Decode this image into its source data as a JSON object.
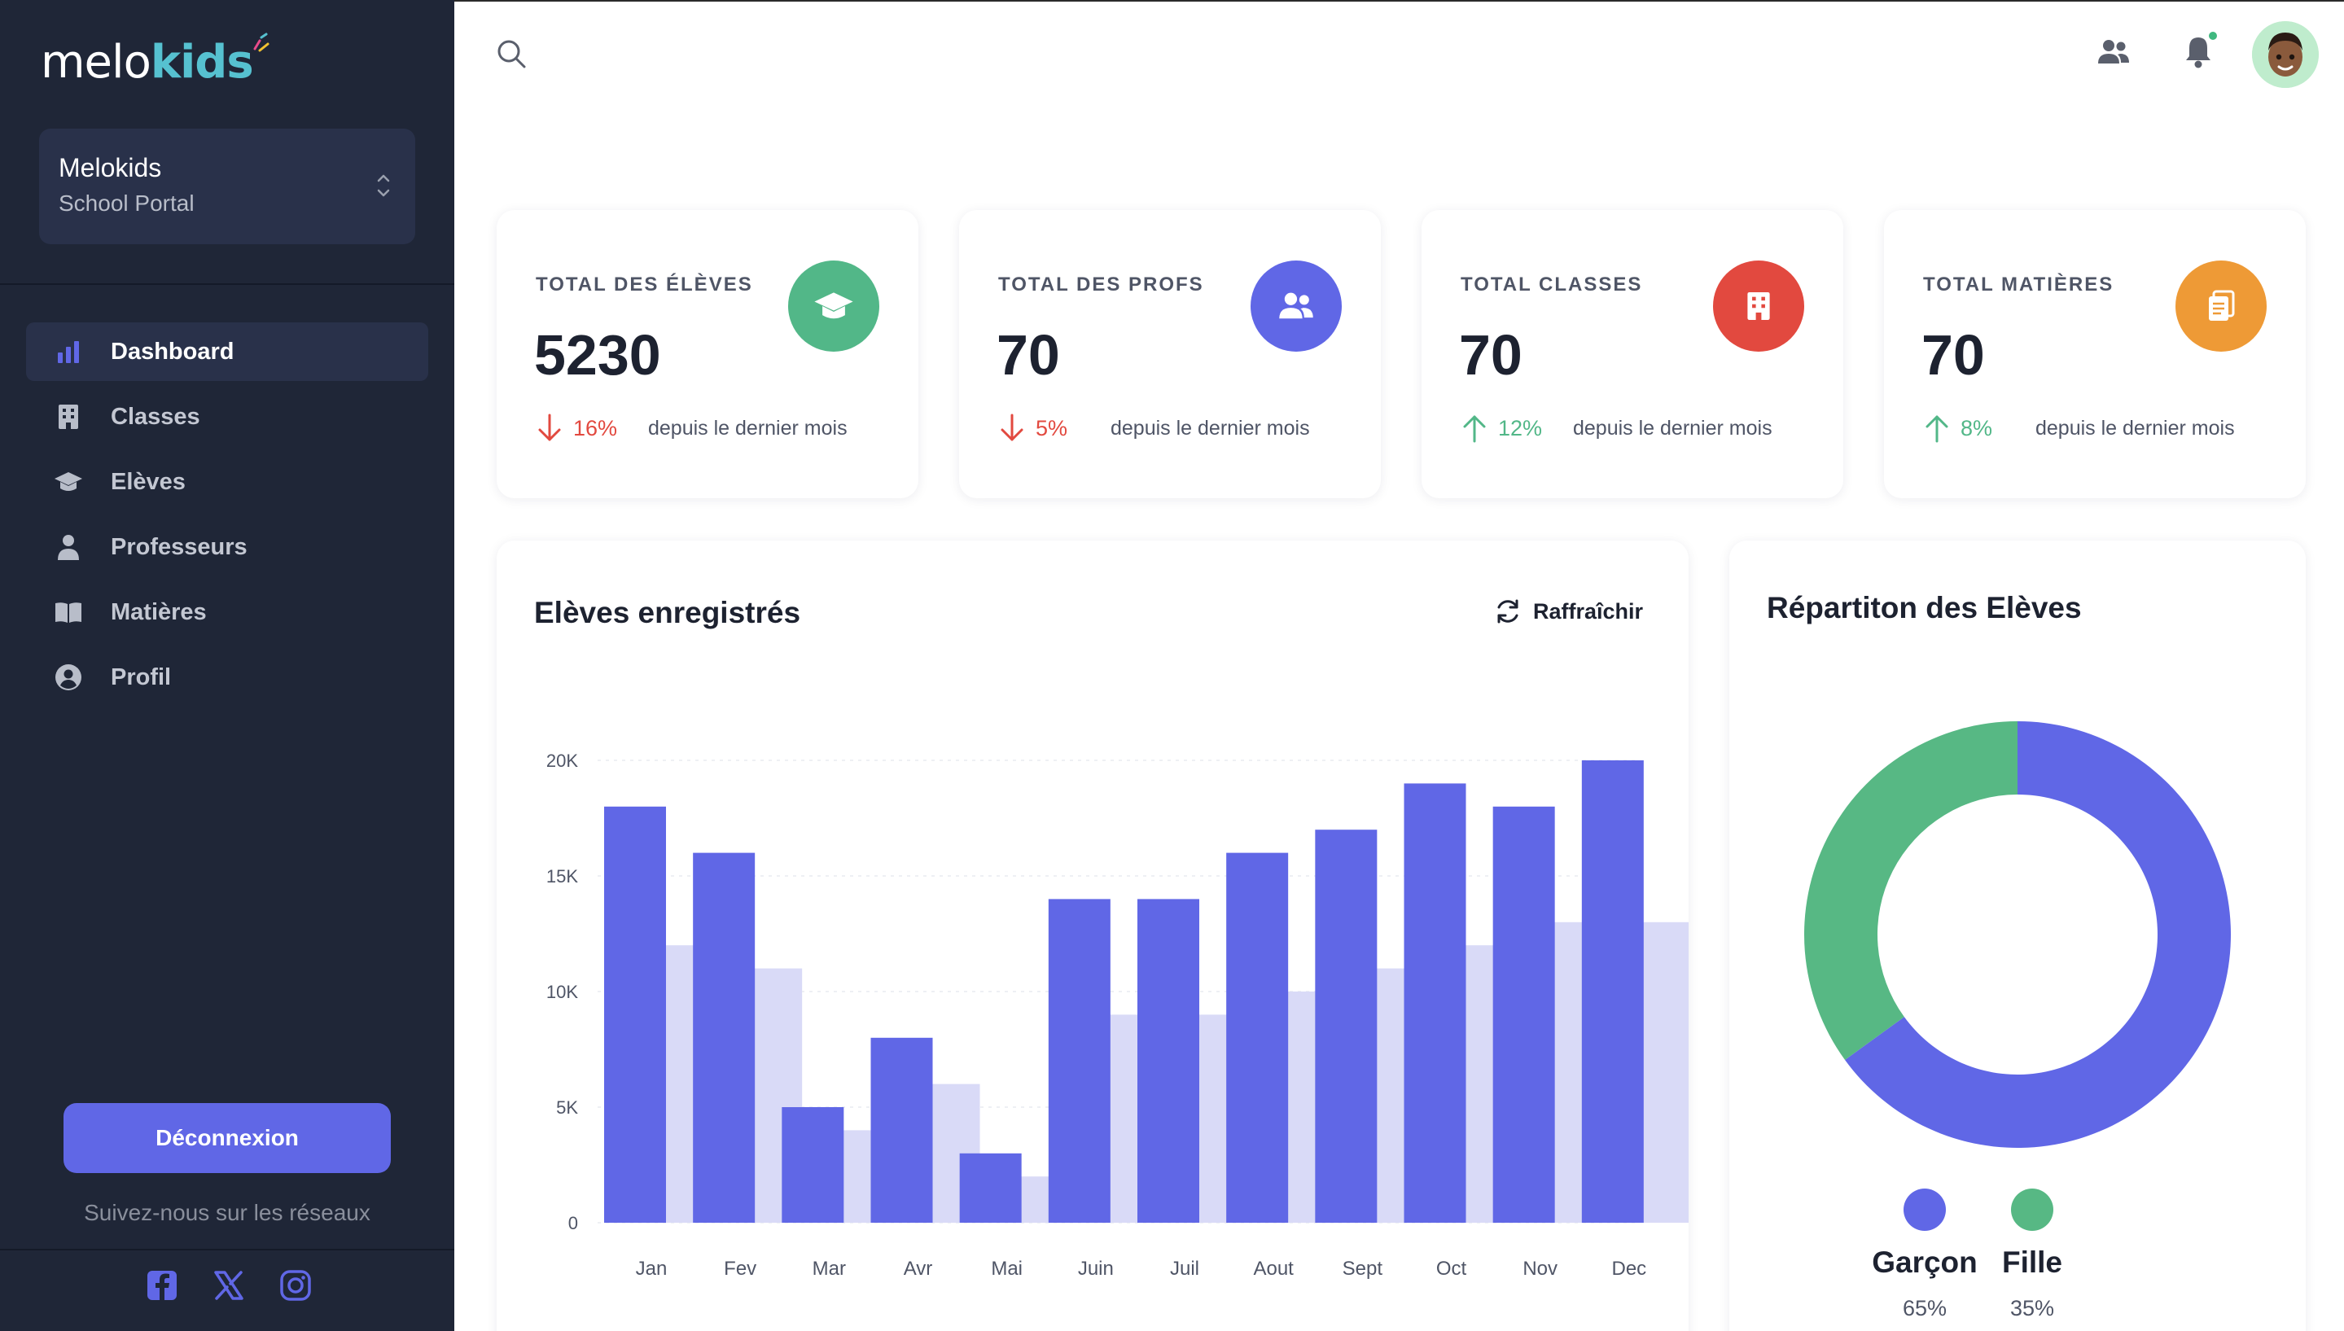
{
  "brand": {
    "logo_left": "melo",
    "logo_right": "kids"
  },
  "org": {
    "name": "Melokids",
    "subtitle": "School Portal"
  },
  "nav": [
    {
      "label": "Dashboard",
      "icon": "bar-chart-icon",
      "active": true
    },
    {
      "label": "Classes",
      "icon": "building-icon",
      "active": false
    },
    {
      "label": "Elèves",
      "icon": "graduation-cap-icon",
      "active": false
    },
    {
      "label": "Professeurs",
      "icon": "user-icon",
      "active": false
    },
    {
      "label": "Matières",
      "icon": "book-icon",
      "active": false
    },
    {
      "label": "Profil",
      "icon": "user-circle-icon",
      "active": false
    }
  ],
  "sidebar": {
    "logout": "Déconnexion",
    "follow": "Suivez-nous sur les réseaux"
  },
  "stats": [
    {
      "title": "TOTAL DES ÉLÈVES",
      "value": "5230",
      "trend": "down",
      "pct": "16%",
      "note": "depuis le dernier mois",
      "color": "#52b788",
      "icon": "graduation-cap-icon"
    },
    {
      "title": "TOTAL DES PROFS",
      "value": "70",
      "trend": "down",
      "pct": "5%",
      "note": "depuis le dernier mois",
      "color": "#6067e6",
      "icon": "users-icon"
    },
    {
      "title": "TOTAL CLASSES",
      "value": "70",
      "trend": "up",
      "pct": "12%",
      "note": "depuis le dernier mois",
      "color": "#e2493f",
      "icon": "building-icon"
    },
    {
      "title": "TOTAL MATIÈRES",
      "value": "70",
      "trend": "up",
      "pct": "8%",
      "note": "depuis le dernier mois",
      "color": "#ee9a36",
      "icon": "clipboard-icon"
    }
  ],
  "colors": {
    "trend_down": "#e2493f",
    "trend_up": "#52b788",
    "bar_primary": "#6067e6",
    "bar_secondary": "#d9daf7",
    "donut_girl": "#57b884"
  },
  "bar_panel": {
    "title": "Elèves enregistrés",
    "refresh": "Raffraîchir"
  },
  "chart_data": {
    "type": "bar",
    "categories": [
      "Jan",
      "Fev",
      "Mar",
      "Avr",
      "Mai",
      "Juin",
      "Juil",
      "Aout",
      "Sept",
      "Oct",
      "Nov",
      "Dec"
    ],
    "series": [
      {
        "values": [
          18000,
          16000,
          5000,
          8000,
          3000,
          14000,
          14000,
          16000,
          17000,
          19000,
          18000,
          20000
        ]
      },
      {
        "values": [
          12000,
          11000,
          4000,
          6000,
          2000,
          9000,
          9000,
          10000,
          11000,
          12000,
          13000,
          13000
        ]
      }
    ],
    "yticks": [
      "0",
      "5K",
      "10K",
      "15K",
      "20K"
    ],
    "ylim": [
      0,
      20000
    ]
  },
  "donut": {
    "title": "Répartiton des Elèves",
    "items": [
      {
        "name": "Garçon",
        "pct": "65%",
        "value": 65,
        "color": "#6067e6"
      },
      {
        "name": "Fille",
        "pct": "35%",
        "value": 35,
        "color": "#57b884"
      }
    ]
  }
}
